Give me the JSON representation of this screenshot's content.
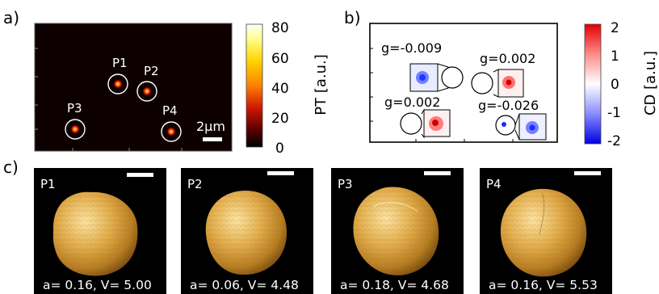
{
  "panel_a": {
    "label": "a)",
    "particles": [
      "P1",
      "P2",
      "P3",
      "P4"
    ],
    "scalebar": "2μm",
    "colorbar": {
      "title": "PT [a.u.]",
      "ticks": [
        "80",
        "60",
        "40",
        "20",
        "0"
      ],
      "colormap": [
        "#ffffff",
        "#ffff7a",
        "#ffe600",
        "#ff8f00",
        "#d81e00",
        "#6a0000",
        "#000000"
      ]
    }
  },
  "panel_b": {
    "label": "b)",
    "g_values": [
      "g=-0.009",
      "g=0.002",
      "g=0.002",
      "g=-0.026"
    ],
    "colorbar": {
      "title": "CD [a.u.]",
      "ticks": [
        "2",
        "1",
        "0",
        "-1",
        "-2"
      ],
      "colormap": [
        "#e00000",
        "#ff8080",
        "#ffffff",
        "#8080ff",
        "#0000e0"
      ]
    }
  },
  "panel_c": {
    "label": "c)",
    "tiles": [
      {
        "label": "P1",
        "caption": "a= 0.16, V= 5.00"
      },
      {
        "label": "P2",
        "caption": "a= 0.06, V= 4.48"
      },
      {
        "label": "P3",
        "caption": "a= 0.18, V= 4.68"
      },
      {
        "label": "P4",
        "caption": "a= 0.16, V= 5.53"
      }
    ]
  },
  "colors": {
    "particle_gold": "#d9a441",
    "background_dark": "#000000",
    "pt_map_bg": "#0d0000"
  }
}
